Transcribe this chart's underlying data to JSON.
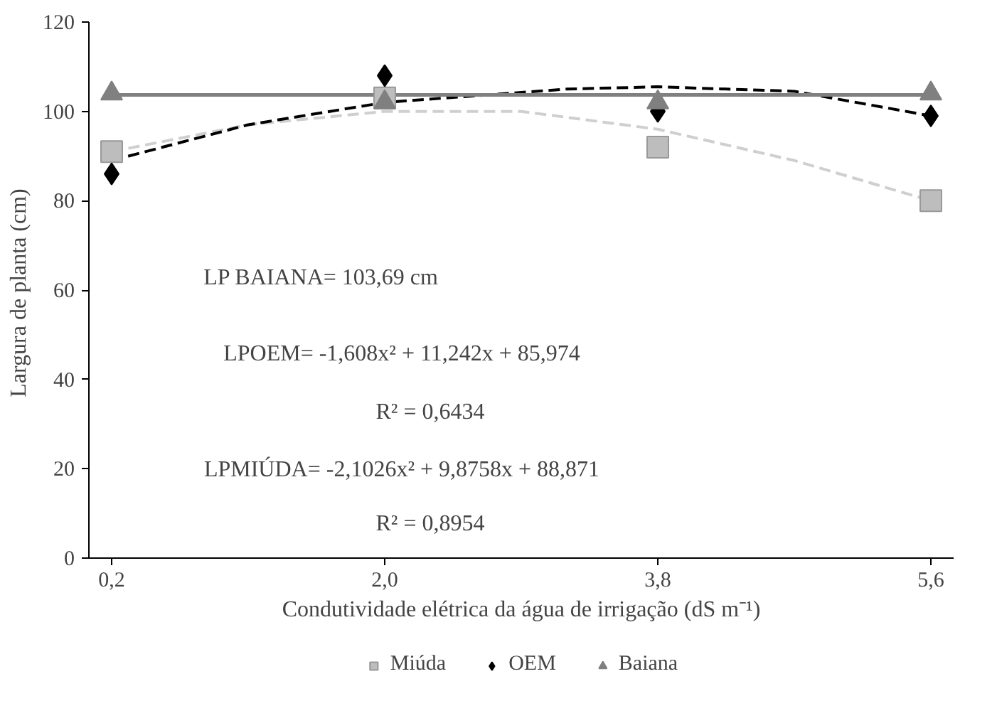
{
  "chart_data": {
    "type": "scatter",
    "xlabel": "Condutividade elétrica da água de irrigação (dS m⁻¹)",
    "ylabel": "Largura  de planta (cm)",
    "x": [
      0.2,
      2.0,
      3.8,
      5.6
    ],
    "xlim": [
      0.05,
      5.75
    ],
    "xticks": [
      {
        "value": 0.2,
        "label": "0,2"
      },
      {
        "value": 2.0,
        "label": "2,0"
      },
      {
        "value": 3.8,
        "label": "3,8"
      },
      {
        "value": 5.6,
        "label": "5,6"
      }
    ],
    "ylim": [
      0,
      120
    ],
    "yticks": [
      0,
      20,
      40,
      60,
      80,
      100,
      120
    ],
    "grid": false,
    "legend": "bottom",
    "series": [
      {
        "name": "Miúda",
        "color": "#bdbdbd",
        "marker": "square",
        "values": [
          91,
          103,
          92,
          80
        ]
      },
      {
        "name": "OEM",
        "color": "#000000",
        "marker": "diamond",
        "values": [
          86,
          108,
          100,
          99
        ]
      },
      {
        "name": "Baiana",
        "color": "#808080",
        "marker": "triangle",
        "values": [
          104,
          102,
          102,
          104
        ]
      },
      {
        "type": "line",
        "color": "#cfcfcf",
        "line_style": "dashed",
        "x": [
          0.2,
          1.1,
          2.0,
          2.9,
          3.8,
          4.7,
          5.6
        ],
        "values": [
          91,
          97,
          100,
          100,
          96,
          89,
          80
        ]
      },
      {
        "type": "line",
        "color": "#000000",
        "line_style": "dashed",
        "x": [
          0.2,
          1.1,
          2.0,
          3.2,
          3.8,
          4.7,
          5.6
        ],
        "values": [
          89,
          97,
          102,
          105,
          105.5,
          104.5,
          99
        ]
      },
      {
        "type": "line",
        "color": "#808080",
        "line_style": "solid",
        "x": [
          0.2,
          5.6
        ],
        "values": [
          103.69,
          103.69
        ]
      }
    ],
    "annotations": [
      "LP BAIANA= 103,69  cm",
      "LPOEM= -1,608x²  + 11,242x  + 85,974",
      "R² = 0,6434",
      "LPMIÚDA= -2,1026x²  + 9,8758x  + 88,871",
      "R² = 0,8954"
    ]
  }
}
